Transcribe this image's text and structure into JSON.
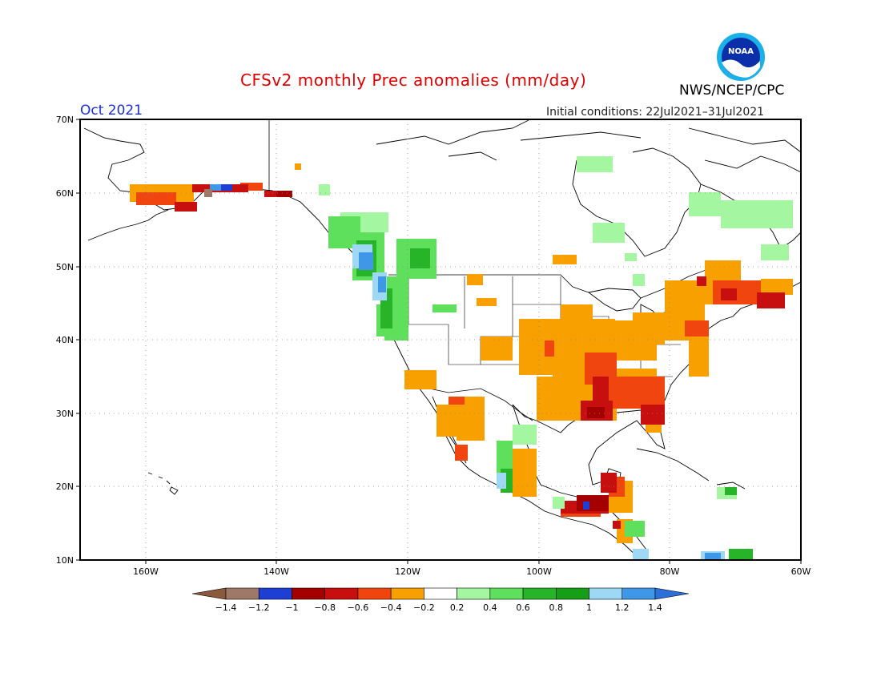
{
  "header": {
    "title": "CFSv2 monthly Prec anomalies (mm/day)",
    "month": "Oct 2021",
    "initial_conditions": "Initial conditions: 22Jul2021–31Jul2021",
    "agency": "NWS/NCEP/CPC",
    "logo_text": "NOAA"
  },
  "map": {
    "lat_labels": [
      "70N",
      "60N",
      "50N",
      "40N",
      "30N",
      "20N",
      "10N"
    ],
    "lon_labels": [
      "160W",
      "140W",
      "120W",
      "100W",
      "80W",
      "60W"
    ],
    "grid": true
  },
  "colorbar": {
    "labels": [
      "−1.4",
      "−1.2",
      "−1",
      "−0.8",
      "−0.6",
      "−0.4",
      "−0.2",
      "0.2",
      "0.4",
      "0.6",
      "0.8",
      "1",
      "1.2",
      "1.4"
    ],
    "colors": [
      "#8b5a3c",
      "#a07868",
      "#1d3fd4",
      "#a50000",
      "#c80f0f",
      "#f0450f",
      "#f7a000",
      "#ffffff",
      "#a4f7a0",
      "#5fe05c",
      "#28b428",
      "#169e16",
      "#9fd8f5",
      "#3f97e8",
      "#2b6fd8"
    ]
  },
  "colors": {
    "orange": "#f7a000",
    "red_orange": "#f0450f",
    "red": "#c80f0f",
    "dark_red": "#a50000",
    "light_green": "#a4f7a0",
    "green": "#5fe05c",
    "dark_green": "#28b428",
    "light_blue": "#9fd8f5",
    "blue": "#3f97e8",
    "deep_blue": "#1d3fd4",
    "brown": "#a07868"
  }
}
